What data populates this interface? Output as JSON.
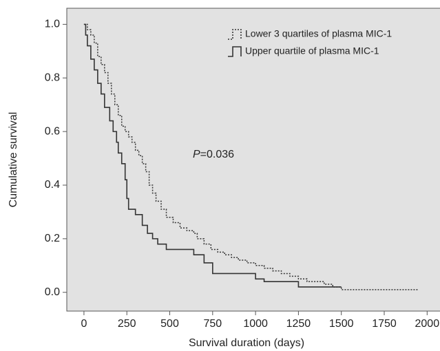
{
  "chart_data": {
    "type": "step",
    "x_label": "Survival duration (days)",
    "y_label": "Cumulative survival",
    "annotation": {
      "italic": "P",
      "text": "=0.036"
    },
    "xlim": [
      -100,
      2075
    ],
    "ylim": [
      -0.07,
      1.06
    ],
    "xticks": [
      0,
      250,
      500,
      750,
      1000,
      1250,
      1500,
      1750,
      2000
    ],
    "yticks": [
      {
        "value": 0,
        "label": "0.0"
      },
      0.2,
      0.4,
      0.6,
      0.8,
      {
        "value": 1,
        "label": "1.0"
      }
    ],
    "series": [
      {
        "name": "Lower 3 quartiles of plasma MIC-1",
        "color": "#333333",
        "dash": true,
        "x": [
          0,
          20,
          40,
          60,
          80,
          100,
          120,
          140,
          160,
          180,
          200,
          220,
          240,
          260,
          280,
          300,
          320,
          340,
          360,
          380,
          400,
          420,
          450,
          480,
          520,
          560,
          600,
          640,
          660,
          700,
          740,
          780,
          820,
          860,
          900,
          950,
          1000,
          1050,
          1100,
          1150,
          1200,
          1250,
          1300,
          1400,
          1450,
          1500,
          1950
        ],
        "values": [
          1.0,
          0.98,
          0.96,
          0.93,
          0.88,
          0.85,
          0.82,
          0.78,
          0.74,
          0.7,
          0.66,
          0.62,
          0.6,
          0.58,
          0.56,
          0.53,
          0.51,
          0.48,
          0.45,
          0.4,
          0.37,
          0.34,
          0.31,
          0.28,
          0.26,
          0.24,
          0.23,
          0.22,
          0.2,
          0.18,
          0.16,
          0.15,
          0.14,
          0.13,
          0.12,
          0.11,
          0.1,
          0.09,
          0.08,
          0.07,
          0.06,
          0.05,
          0.04,
          0.03,
          0.02,
          0.01,
          0.01
        ]
      },
      {
        "name": "Upper quartile of plasma MIC-1",
        "color": "#333333",
        "dash": false,
        "x": [
          0,
          10,
          20,
          40,
          60,
          80,
          100,
          120,
          150,
          170,
          190,
          200,
          220,
          240,
          250,
          260,
          300,
          340,
          370,
          400,
          430,
          480,
          640,
          700,
          750,
          1000,
          1050,
          1250,
          1500
        ],
        "values": [
          1.0,
          0.96,
          0.92,
          0.87,
          0.83,
          0.78,
          0.74,
          0.69,
          0.64,
          0.6,
          0.56,
          0.52,
          0.48,
          0.42,
          0.35,
          0.31,
          0.29,
          0.25,
          0.22,
          0.2,
          0.18,
          0.16,
          0.14,
          0.11,
          0.07,
          0.05,
          0.04,
          0.02,
          0.02
        ]
      }
    ]
  }
}
